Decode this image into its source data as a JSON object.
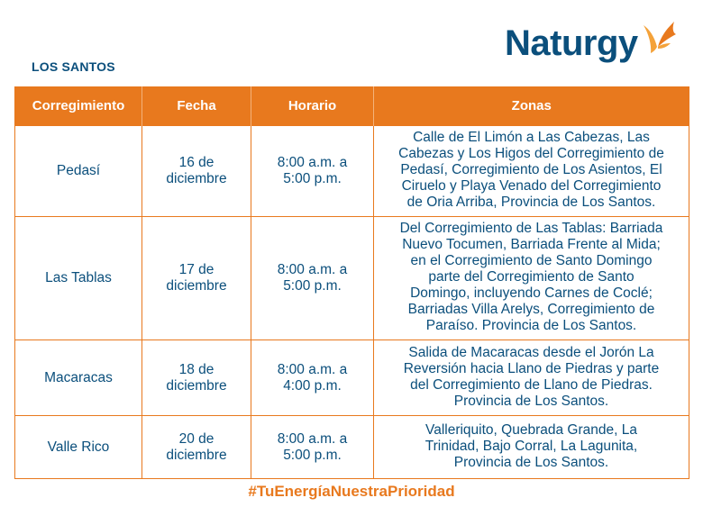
{
  "region_title": "LOS SANTOS",
  "brand": {
    "name": "Naturgy",
    "primary_color": "#0b4f7c",
    "accent_color": "#e8791e",
    "logo_icon": "butterfly-icon"
  },
  "table": {
    "headers": [
      "Corregimiento",
      "Fecha",
      "Horario",
      "Zonas"
    ],
    "rows": [
      {
        "corregimiento": "Pedasí",
        "fecha": [
          "16 de",
          "diciembre"
        ],
        "horario": [
          "8:00 a.m. a",
          "5:00 p.m."
        ],
        "zonas": [
          "Calle de El Limón a Las Cabezas, Las",
          "Cabezas y Los Higos del Corregimiento de",
          "Pedasí, Corregimiento de Los Asientos, El",
          "Ciruelo y Playa Venado del Corregimiento",
          "de Oria Arriba, Provincia de Los Santos."
        ]
      },
      {
        "corregimiento": "Las Tablas",
        "fecha": [
          "17 de",
          "diciembre"
        ],
        "horario": [
          "8:00 a.m. a",
          "5:00 p.m."
        ],
        "zonas": [
          "Del Corregimiento de Las Tablas: Barriada",
          "Nuevo Tocumen, Barriada Frente al Mida;",
          "en el Corregimiento de Santo Domingo",
          "parte del Corregimiento de Santo",
          "Domingo, incluyendo Carnes de Coclé;",
          "Barriadas Villa Arelys, Corregimiento de",
          "Paraíso. Provincia de Los Santos."
        ]
      },
      {
        "corregimiento": "Macaracas",
        "fecha": [
          "18 de",
          "diciembre"
        ],
        "horario": [
          "8:00 a.m. a",
          "4:00 p.m."
        ],
        "zonas": [
          "Salida de Macaracas desde el Jorón La",
          "Reversión hacia Llano de Piedras y parte",
          "del Corregimiento de Llano de Piedras.",
          "Provincia de Los Santos."
        ]
      },
      {
        "corregimiento": "Valle Rico",
        "fecha": [
          "20 de",
          "diciembre"
        ],
        "horario": [
          "8:00 a.m. a",
          "5:00 p.m."
        ],
        "zonas": [
          "Valleriquito, Quebrada Grande, La",
          "Trinidad, Bajo Corral, La Lagunita,",
          "Provincia de Los Santos."
        ]
      }
    ]
  },
  "hashtag": "#TuEnergíaNuestraPrioridad"
}
